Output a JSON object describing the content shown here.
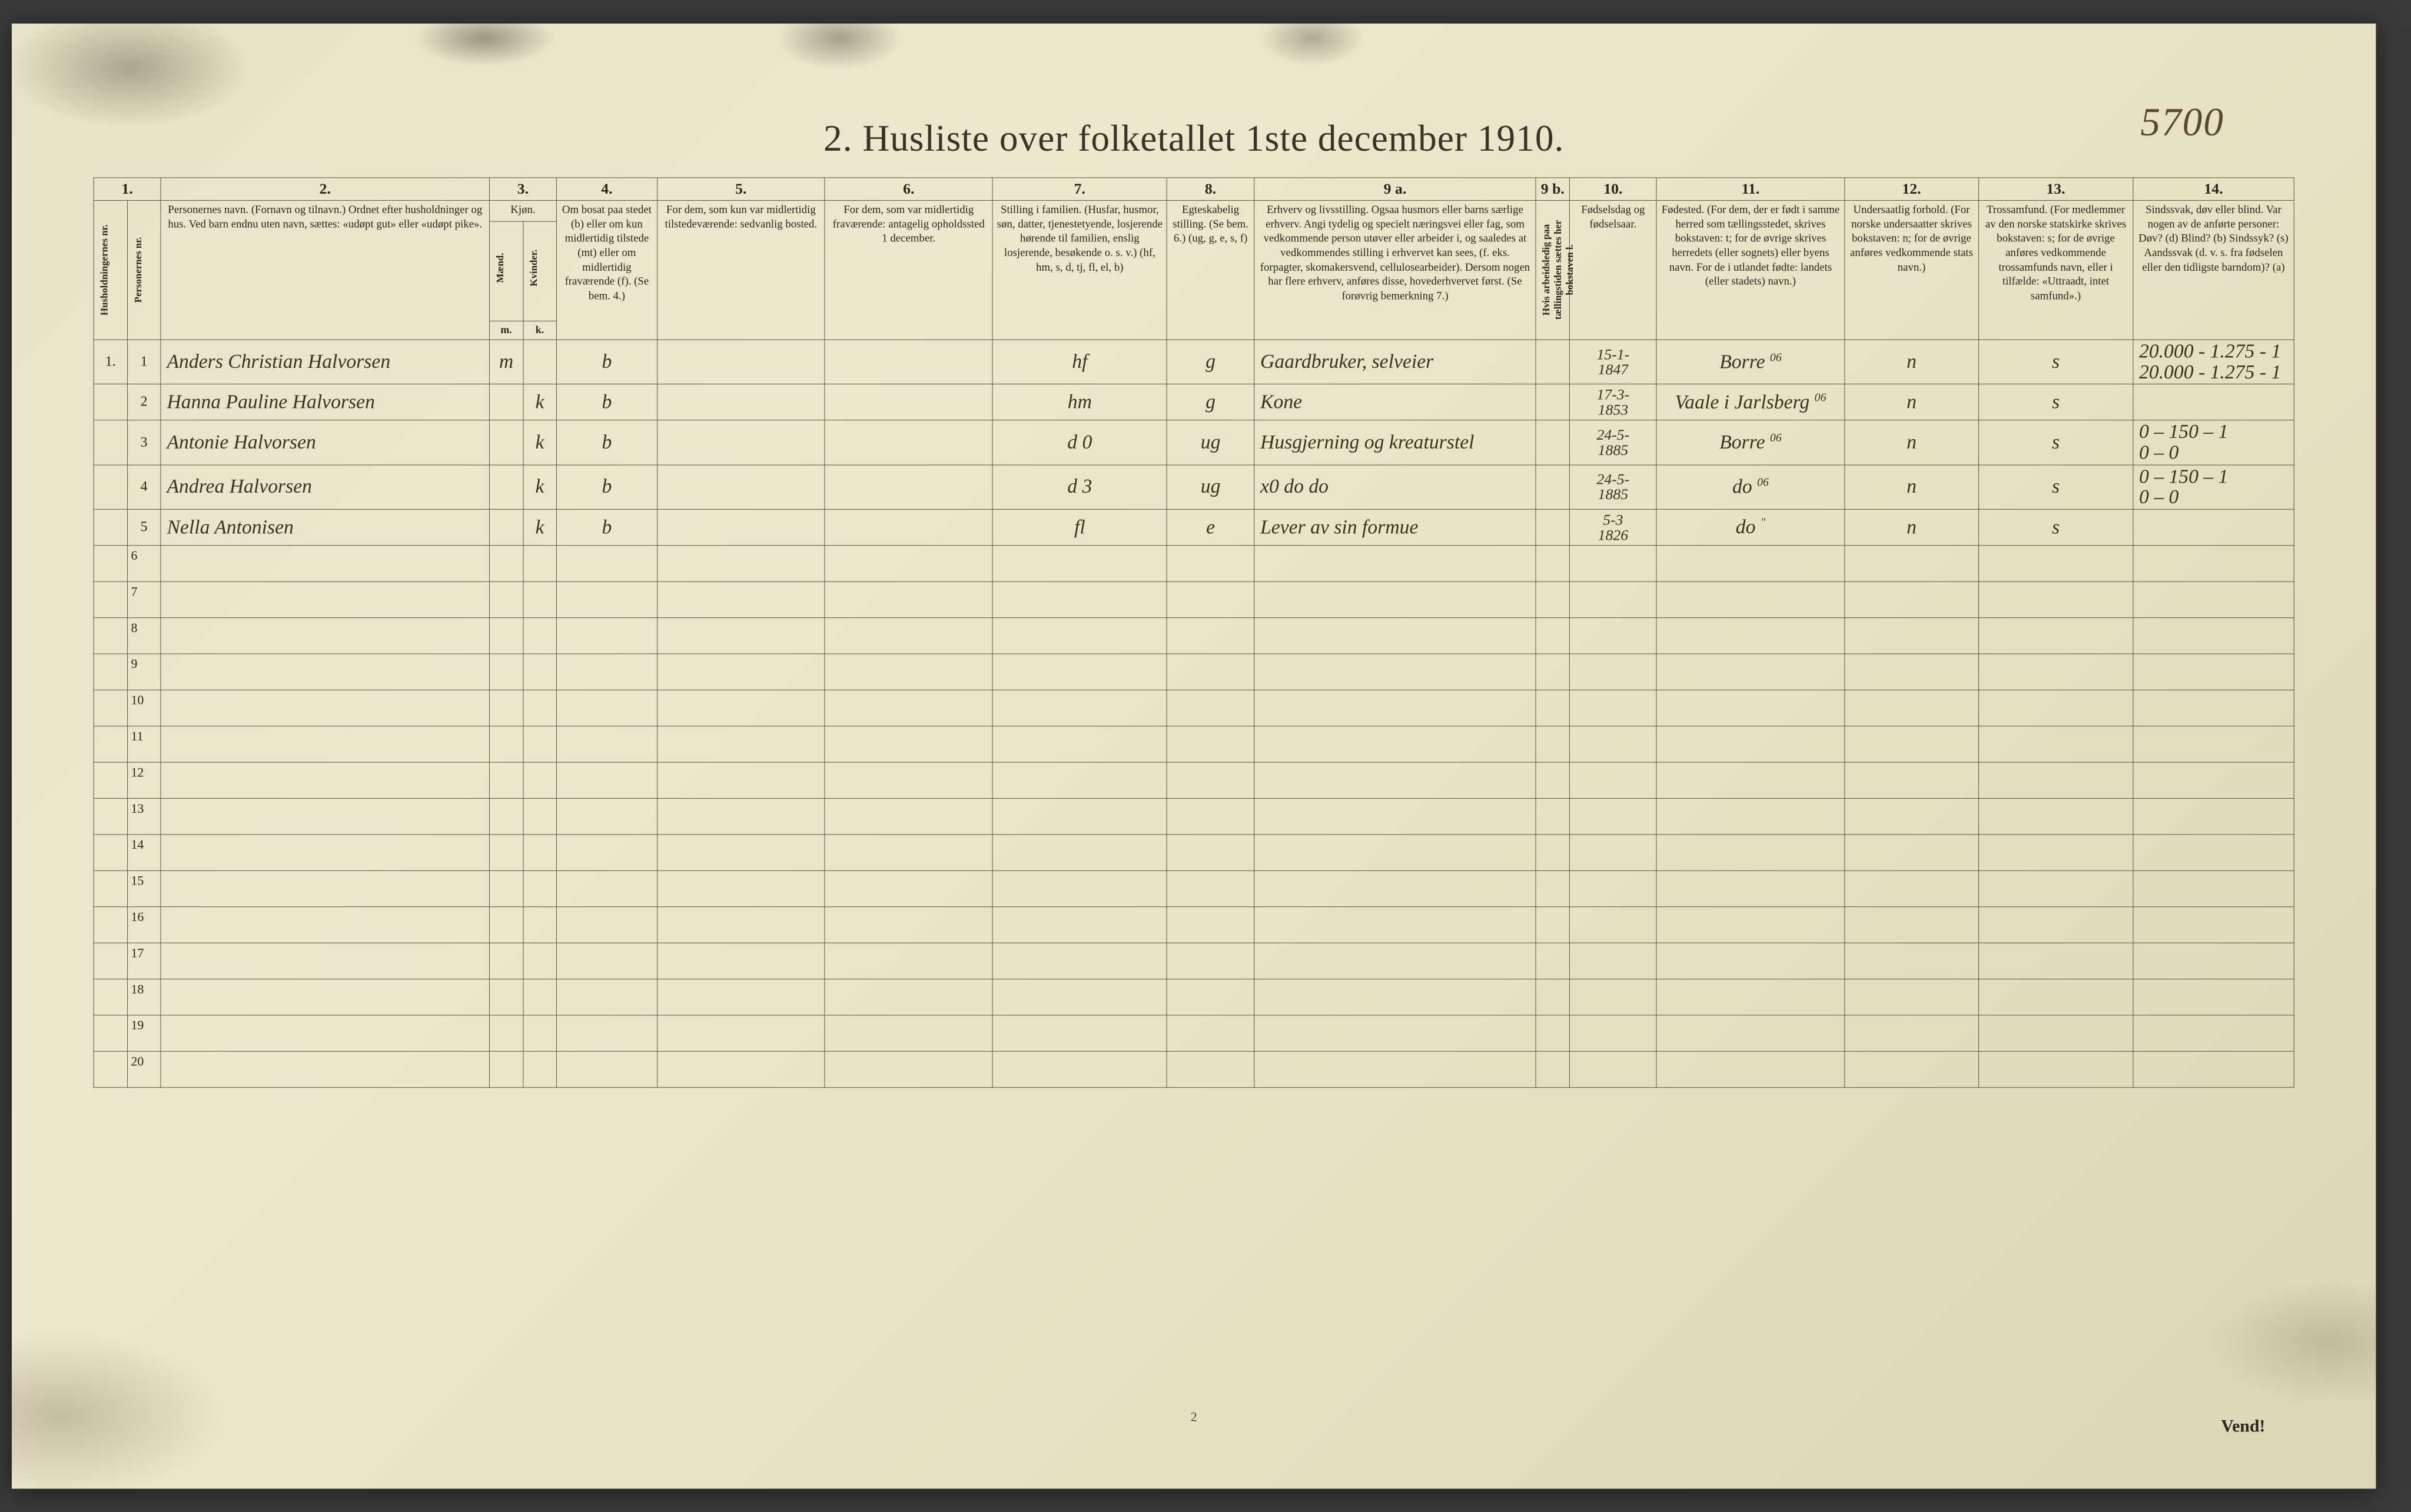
{
  "page": {
    "background_base": "#e8e2c8",
    "ink_color": "#2a261c",
    "handwriting_color": "#3b3220",
    "pencil_color": "#7a7260",
    "rule_color": "#5a5240"
  },
  "annotations": {
    "top_right_handwritten": "5700",
    "bottom_page_number": "2",
    "vend": "Vend!"
  },
  "title": "2.  Husliste over folketallet 1ste december 1910.",
  "columns": {
    "nums": [
      "1.",
      "2.",
      "3.",
      "4.",
      "5.",
      "6.",
      "7.",
      "8.",
      "9 a.",
      "9 b.",
      "10.",
      "11.",
      "12.",
      "13.",
      "14."
    ],
    "c1_v1": "Husholdningernes nr.",
    "c1_v2": "Personernes nr.",
    "c2": "Personernes navn.\n(Fornavn og tilnavn.)\nOrdnet efter husholdninger og hus.\nVed barn endnu uten navn, sættes: «udøpt gut» eller «udøpt pike».",
    "c3": "Kjøn.",
    "c3_m": "Mænd.",
    "c3_k": "Kvinder.",
    "c3_sub_m": "m.",
    "c3_sub_k": "k.",
    "c4": "Om bosat paa stedet (b) eller om kun midlertidig tilstede (mt) eller om midlertidig fraværende (f).\n(Se bem. 4.)",
    "c5": "For dem, som kun var midlertidig tilstedeværende:\nsedvanlig bosted.",
    "c6": "For dem, som var midlertidig fraværende:\nantagelig opholdssted 1 december.",
    "c7": "Stilling i familien.\n(Husfar, husmor, søn, datter, tjenestetyende, losjerende hørende til familien, enslig losjerende, besøkende o. s. v.)\n(hf, hm, s, d, tj, fl, el, b)",
    "c8": "Egteskabelig stilling.\n(Se bem. 6.)\n(ug, g, e, s, f)",
    "c9a": "Erhverv og livsstilling.\nOgsaa husmors eller barns særlige erhverv. Angi tydelig og specielt næringsvei eller fag, som vedkommende person utøver eller arbeider i, og saaledes at vedkommendes stilling i erhvervet kan sees, (f. eks. forpagter, skomakersvend, cellulosearbeider). Dersom nogen har flere erhverv, anføres disse, hovederhvervet først.\n(Se forøvrig bemerkning 7.)",
    "c9b": "Hvis arbeidsledig paa tællingstiden sættes her bokstaven l.",
    "c10": "Fødselsdag og fødselsaar.",
    "c11": "Fødested.\n(For dem, der er født i samme herred som tællingsstedet, skrives bokstaven: t; for de øvrige skrives herredets (eller sognets) eller byens navn. For de i utlandet fødte: landets (eller stadets) navn.)",
    "c12": "Undersaatlig forhold.\n(For norske undersaatter skrives bokstaven: n; for de øvrige anføres vedkommende stats navn.)",
    "c13": "Trossamfund.\n(For medlemmer av den norske statskirke skrives bokstaven: s; for de øvrige anføres vedkommende trossamfunds navn, eller i tilfælde: «Uttraadt, intet samfund».)",
    "c14": "Sindssvak, døv eller blind.\nVar nogen av de anførte personer:\nDøv?  (d)\nBlind?  (b)\nSindssyk?  (s)\nAandssvak (d. v. s. fra fødselen eller den tidligste barndom)?  (a)"
  },
  "rows": [
    {
      "hh": "1.",
      "pn": "1",
      "name": "Anders Christian Halvorsen",
      "sex_m": "m",
      "sex_k": "",
      "res": "b",
      "temp": "",
      "away": "",
      "fam": "hf",
      "mar": "g",
      "occ": "Gaardbruker, selveier",
      "wl": "",
      "dob": "15-1-\n1847",
      "birthplace": "Borre",
      "bp_sup": "06",
      "nat": "n",
      "rel": "s",
      "c14": "20.000 - 1.275 - 1\n20.000 - 1.275 - 1"
    },
    {
      "hh": "",
      "pn": "2",
      "name": "Hanna Pauline Halvorsen",
      "sex_m": "",
      "sex_k": "k",
      "res": "b",
      "temp": "",
      "away": "",
      "fam": "hm",
      "mar": "g",
      "occ": "Kone",
      "wl": "",
      "dob": "17-3-\n1853",
      "birthplace": "Vaale i Jarlsberg",
      "bp_sup": "06",
      "nat": "n",
      "rel": "s",
      "c14": ""
    },
    {
      "hh": "",
      "pn": "3",
      "name": "Antonie Halvorsen",
      "sex_m": "",
      "sex_k": "k",
      "res": "b",
      "temp": "",
      "away": "",
      "fam": "d    0",
      "mar": "ug",
      "occ": "Husgjerning og kreaturstel",
      "wl": "",
      "dob": "24-5-\n1885",
      "birthplace": "Borre",
      "bp_sup": "06",
      "nat": "n",
      "rel": "s",
      "c14": "0 – 150 – 1\n0 – 0"
    },
    {
      "hh": "",
      "pn": "4",
      "name": "Andrea Halvorsen",
      "sex_m": "",
      "sex_k": "k",
      "res": "b",
      "temp": "",
      "away": "",
      "fam": "d    3",
      "mar": "ug",
      "occ": "x0       do            do",
      "wl": "",
      "dob": "24-5-\n1885",
      "birthplace": "do",
      "bp_sup": "06",
      "nat": "n",
      "rel": "s",
      "c14": "0 – 150 – 1\n0 – 0"
    },
    {
      "hh": "",
      "pn": "5",
      "name": "Nella Antonisen",
      "sex_m": "",
      "sex_k": "k",
      "res": "b",
      "temp": "",
      "away": "",
      "fam": "fl",
      "mar": "e",
      "occ": "Lever av sin formue",
      "wl": "",
      "dob": "5-3\n1826",
      "birthplace": "do",
      "bp_sup": "\"",
      "nat": "n",
      "rel": "s",
      "c14": ""
    }
  ],
  "total_rows": 20
}
